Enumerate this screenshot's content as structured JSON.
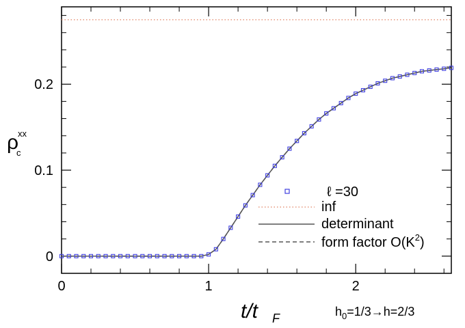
{
  "chart_data": {
    "type": "line",
    "xlabel": "t/t",
    "xlabel_sub": "F",
    "ylabel": "ρ",
    "ylabel_sub": "c",
    "ylabel_sup": "xx",
    "xlim": [
      0,
      2.65
    ],
    "ylim": [
      -0.02,
      0.29
    ],
    "xticks": [
      0,
      1,
      2
    ],
    "xtick_labels": [
      "0",
      "1",
      "2"
    ],
    "yticks": [
      0,
      0.1,
      0.2
    ],
    "ytick_labels": [
      "0",
      "0.1",
      "0.2"
    ],
    "grid": false,
    "legend_position": "lower-right",
    "series": [
      {
        "name": "ℓ =30",
        "kind": "markers",
        "color": "#4040e0",
        "x": [
          0.0,
          0.05,
          0.1,
          0.15,
          0.2,
          0.25,
          0.3,
          0.35,
          0.4,
          0.45,
          0.5,
          0.55,
          0.6,
          0.65,
          0.7,
          0.75,
          0.8,
          0.85,
          0.9,
          0.95,
          1.0,
          1.05,
          1.1,
          1.15,
          1.2,
          1.25,
          1.3,
          1.35,
          1.4,
          1.45,
          1.5,
          1.55,
          1.6,
          1.65,
          1.7,
          1.75,
          1.8,
          1.85,
          1.9,
          1.95,
          2.0,
          2.05,
          2.1,
          2.15,
          2.2,
          2.25,
          2.3,
          2.35,
          2.4,
          2.45,
          2.5,
          2.55,
          2.6,
          2.65
        ],
        "y": [
          0.0,
          0.0,
          0.0,
          0.0,
          0.0,
          0.0,
          0.0,
          0.0,
          0.0,
          0.0,
          0.0,
          0.0,
          0.0,
          0.0,
          0.0,
          0.0,
          0.0,
          0.0,
          0.0,
          0.0,
          0.002,
          0.008,
          0.02,
          0.033,
          0.046,
          0.059,
          0.071,
          0.083,
          0.094,
          0.105,
          0.115,
          0.125,
          0.134,
          0.143,
          0.151,
          0.159,
          0.166,
          0.172,
          0.178,
          0.184,
          0.189,
          0.193,
          0.197,
          0.201,
          0.204,
          0.207,
          0.209,
          0.211,
          0.213,
          0.215,
          0.216,
          0.217,
          0.218,
          0.219
        ]
      },
      {
        "name": "inf",
        "kind": "dotted",
        "color": "#e08060",
        "x": [
          0,
          2.65
        ],
        "y": [
          0.275,
          0.275
        ]
      },
      {
        "name": "determinant",
        "kind": "solid",
        "color": "#555555",
        "x": [
          0.0,
          0.2,
          0.4,
          0.6,
          0.8,
          0.9,
          0.95,
          1.0,
          1.05,
          1.1,
          1.15,
          1.2,
          1.25,
          1.3,
          1.35,
          1.4,
          1.45,
          1.5,
          1.55,
          1.6,
          1.65,
          1.7,
          1.75,
          1.8,
          1.85,
          1.9,
          1.95,
          2.0,
          2.05,
          2.1,
          2.15,
          2.2,
          2.25,
          2.3,
          2.35,
          2.4,
          2.45,
          2.5,
          2.55,
          2.6,
          2.65
        ],
        "y": [
          0.0,
          0.0,
          0.0,
          0.0,
          0.0,
          0.0,
          0.0,
          0.002,
          0.008,
          0.02,
          0.033,
          0.046,
          0.059,
          0.071,
          0.083,
          0.094,
          0.105,
          0.115,
          0.125,
          0.134,
          0.143,
          0.151,
          0.159,
          0.166,
          0.172,
          0.178,
          0.184,
          0.189,
          0.193,
          0.197,
          0.201,
          0.204,
          0.207,
          0.209,
          0.211,
          0.213,
          0.215,
          0.216,
          0.217,
          0.218,
          0.219
        ]
      },
      {
        "name": "form factor O(K",
        "name_sup": "2",
        "name_suffix": ")",
        "kind": "dashed",
        "color": "#555555",
        "x": [
          0.0,
          0.2,
          0.4,
          0.6,
          0.8,
          0.9,
          0.95,
          1.0,
          1.05,
          1.1,
          1.15,
          1.2,
          1.25,
          1.3,
          1.35,
          1.4,
          1.45,
          1.5,
          1.55,
          1.6,
          1.65,
          1.7,
          1.75,
          1.8,
          1.85,
          1.9,
          1.95,
          2.0,
          2.05,
          2.1,
          2.15,
          2.2,
          2.25,
          2.3,
          2.35,
          2.4,
          2.45,
          2.5,
          2.55,
          2.6,
          2.65
        ],
        "y": [
          0.0,
          0.0,
          0.0,
          0.0,
          0.0,
          0.0,
          0.0,
          0.002,
          0.008,
          0.02,
          0.033,
          0.046,
          0.059,
          0.071,
          0.083,
          0.094,
          0.105,
          0.115,
          0.125,
          0.134,
          0.143,
          0.151,
          0.159,
          0.166,
          0.172,
          0.178,
          0.184,
          0.189,
          0.193,
          0.197,
          0.201,
          0.204,
          0.207,
          0.209,
          0.211,
          0.213,
          0.215,
          0.216,
          0.217,
          0.218,
          0.219
        ]
      }
    ],
    "annotation": {
      "prefix": "h",
      "sub": "0",
      "suffix": "=1/3→h=2/3"
    }
  }
}
